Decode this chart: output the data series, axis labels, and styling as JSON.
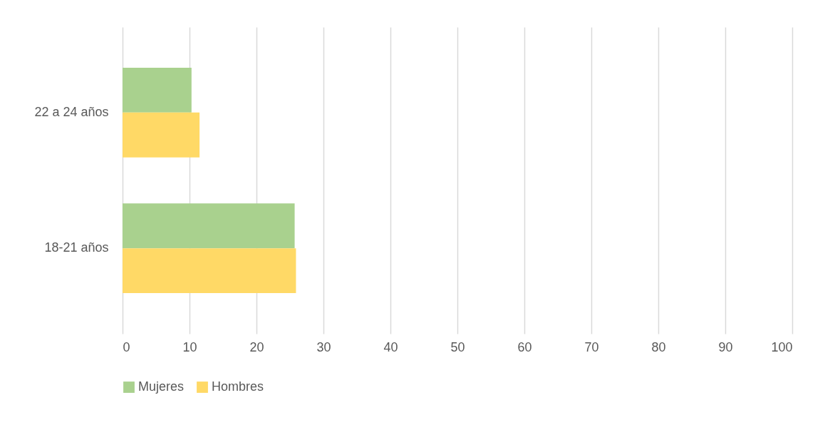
{
  "chart_data": {
    "type": "bar",
    "orientation": "horizontal",
    "categories": [
      "22 a 24 años",
      "18-21 años"
    ],
    "series": [
      {
        "name": "Mujeres",
        "color": "#a9d18e",
        "values": [
          10.3,
          25.7
        ]
      },
      {
        "name": "Hombres",
        "color": "#ffd966",
        "values": [
          11.5,
          25.9
        ]
      }
    ],
    "xlim": [
      0,
      100
    ],
    "xticks": [
      0,
      10,
      20,
      30,
      40,
      50,
      60,
      70,
      80,
      90,
      100
    ],
    "grid": "x",
    "legend": "bottom"
  }
}
